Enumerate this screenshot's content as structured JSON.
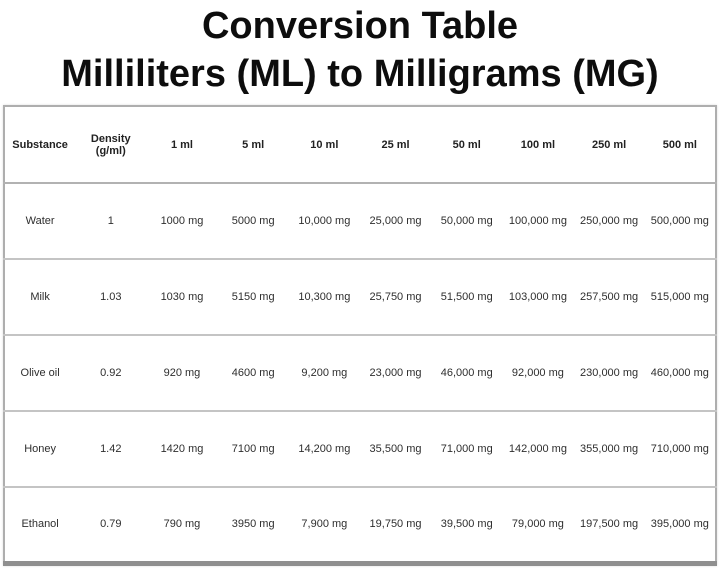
{
  "title": {
    "line1": "Conversion Table",
    "line2": "Milliliters (ML) to Milligrams (MG)"
  },
  "table": {
    "columns": [
      "Substance",
      "Density (g/ml)",
      "1 ml",
      "5 ml",
      "10 ml",
      "25 ml",
      "50 ml",
      "100 ml",
      "250 ml",
      "500 ml"
    ],
    "rows": [
      [
        "Water",
        "1",
        "1000 mg",
        "5000 mg",
        "10,000 mg",
        "25,000 mg",
        "50,000 mg",
        "100,000 mg",
        "250,000 mg",
        "500,000 mg"
      ],
      [
        "Milk",
        "1.03",
        "1030 mg",
        "5150 mg",
        "10,300 mg",
        "25,750 mg",
        "51,500 mg",
        "103,000 mg",
        "257,500 mg",
        "515,000 mg"
      ],
      [
        "Olive oil",
        "0.92",
        "920 mg",
        "4600 mg",
        "9,200 mg",
        "23,000 mg",
        "46,000 mg",
        "92,000 mg",
        "230,000 mg",
        "460,000 mg"
      ],
      [
        "Honey",
        "1.42",
        "1420 mg",
        "7100 mg",
        "14,200 mg",
        "35,500 mg",
        "71,000 mg",
        "142,000 mg",
        "355,000 mg",
        "710,000 mg"
      ],
      [
        "Ethanol",
        "0.79",
        "790 mg",
        "3950 mg",
        "7,900 mg",
        "19,750 mg",
        "39,500 mg",
        "79,000 mg",
        "197,500 mg",
        "395,000 mg"
      ]
    ]
  },
  "colors": {
    "background": "#ffffff",
    "title_text": "#0d0d0d",
    "table_text": "#2e2e2e",
    "table_border": "#aeaeae",
    "row_separator": "#c4c4c4",
    "bottom_border": "#8f8f8f"
  }
}
